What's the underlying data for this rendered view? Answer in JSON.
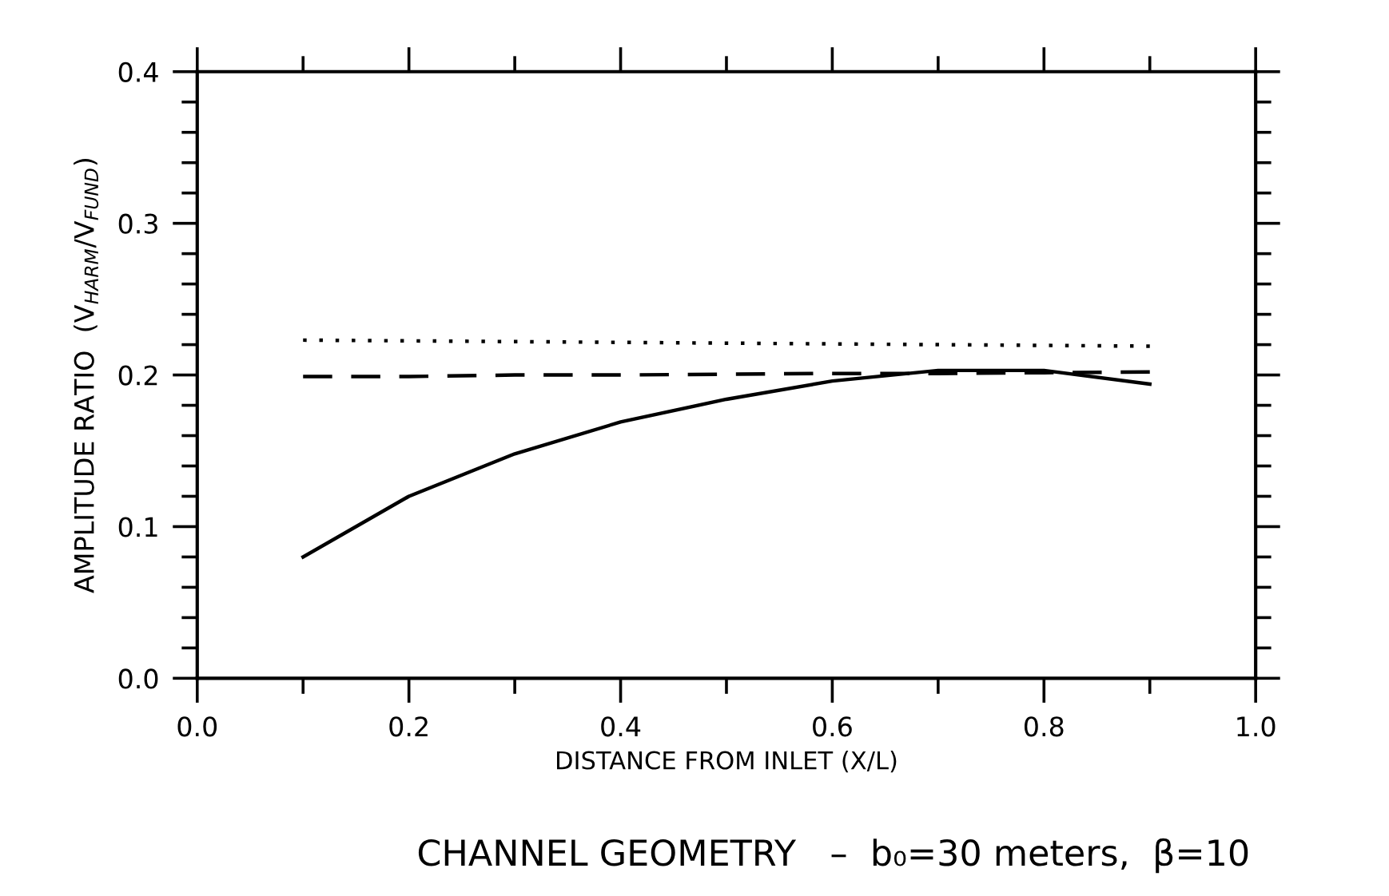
{
  "chart_data": {
    "type": "line",
    "xlabel": "DISTANCE FROM INLET (X/L)",
    "ylabel": "AMPLITUDE RATIO  (V$_{HARM}$/V$_{FUND}$)",
    "annotations": [
      "CHANNEL GEOMETRY   –  b₀=30 meters,  β=10"
    ],
    "x": [
      0.1,
      0.2,
      0.3,
      0.4,
      0.5,
      0.6,
      0.7,
      0.8,
      0.9
    ],
    "series": [
      {
        "color": "#000000",
        "line_style": "solid",
        "values": [
          0.08,
          0.12,
          0.148,
          0.169,
          0.184,
          0.196,
          0.203,
          0.203,
          0.194
        ]
      },
      {
        "color": "#000000",
        "line_style": "dotted",
        "values": [
          0.223,
          0.2225,
          0.222,
          0.2215,
          0.221,
          0.2205,
          0.22,
          0.2195,
          0.219
        ]
      },
      {
        "color": "#000000",
        "line_style": "dashed",
        "values": [
          0.199,
          0.199,
          0.2,
          0.2,
          0.2005,
          0.201,
          0.201,
          0.2015,
          0.202
        ]
      }
    ],
    "xlim": [
      0,
      1
    ],
    "ylim": [
      0,
      0.4
    ],
    "xticks": [
      {
        "value": 0.0,
        "label": "0.0"
      },
      {
        "value": 0.1,
        "label": null
      },
      {
        "value": 0.2,
        "label": "0.2"
      },
      {
        "value": 0.3,
        "label": null
      },
      {
        "value": 0.4,
        "label": "0.4"
      },
      {
        "value": 0.5,
        "label": null
      },
      {
        "value": 0.6,
        "label": "0.6"
      },
      {
        "value": 0.7,
        "label": null
      },
      {
        "value": 0.8,
        "label": "0.8"
      },
      {
        "value": 0.9,
        "label": null
      },
      {
        "value": 1.0,
        "label": "1.0"
      }
    ],
    "yticks": [
      {
        "value": 0.0,
        "label": "0.0"
      },
      {
        "value": 0.02,
        "label": null
      },
      {
        "value": 0.04,
        "label": null
      },
      {
        "value": 0.06,
        "label": null
      },
      {
        "value": 0.08,
        "label": null
      },
      {
        "value": 0.1,
        "label": "0.1"
      },
      {
        "value": 0.12,
        "label": null
      },
      {
        "value": 0.14,
        "label": null
      },
      {
        "value": 0.16,
        "label": null
      },
      {
        "value": 0.18,
        "label": null
      },
      {
        "value": 0.2,
        "label": "0.2"
      },
      {
        "value": 0.22,
        "label": null
      },
      {
        "value": 0.24,
        "label": null
      },
      {
        "value": 0.26,
        "label": null
      },
      {
        "value": 0.28,
        "label": null
      },
      {
        "value": 0.3,
        "label": "0.3"
      },
      {
        "value": 0.32,
        "label": null
      },
      {
        "value": 0.34,
        "label": null
      },
      {
        "value": 0.36,
        "label": null
      },
      {
        "value": 0.38,
        "label": null
      },
      {
        "value": 0.4,
        "label": "0.4"
      }
    ],
    "grid": false,
    "legend": false
  }
}
